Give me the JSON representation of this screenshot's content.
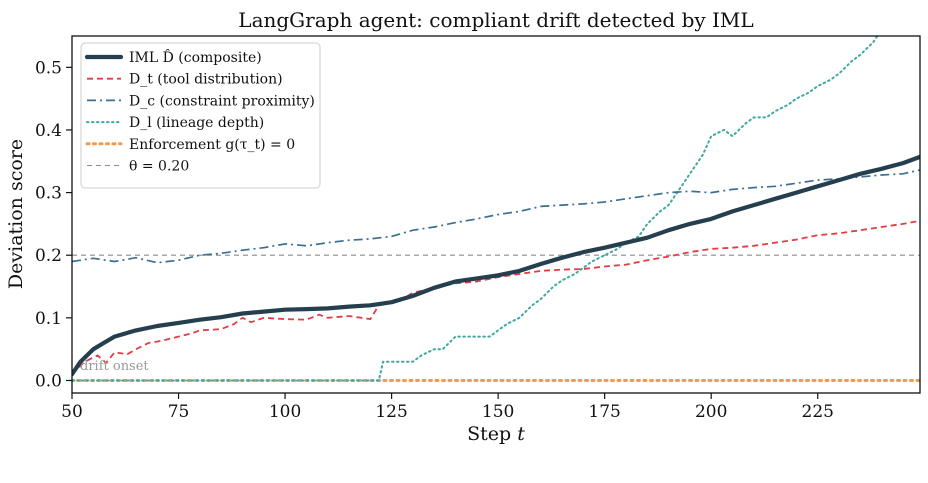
{
  "chart_data": {
    "type": "line",
    "title": "LangGraph agent: compliant drift detected by IML",
    "xlabel": "Step t",
    "ylabel": "Deviation score",
    "xlim": [
      50,
      249
    ],
    "ylim": [
      -0.02,
      0.55
    ],
    "xticks": [
      50,
      75,
      100,
      125,
      150,
      175,
      200,
      225
    ],
    "yticks": [
      0.0,
      0.1,
      0.2,
      0.3,
      0.4,
      0.5
    ],
    "xtick_labels": [
      "50",
      "75",
      "100",
      "125",
      "150",
      "175",
      "200",
      "225"
    ],
    "ytick_labels": [
      "0.0",
      "0.1",
      "0.2",
      "0.3",
      "0.4",
      "0.5"
    ],
    "grid": false,
    "legend_position": "top-left",
    "annotation": "drift onset",
    "series": [
      {
        "name": "IML D̂ (composite)",
        "color": "#263f4f",
        "style": "solid",
        "x": [
          50,
          52,
          55,
          58,
          60,
          65,
          70,
          75,
          80,
          85,
          90,
          95,
          100,
          105,
          110,
          115,
          120,
          125,
          130,
          135,
          140,
          145,
          150,
          155,
          160,
          165,
          170,
          175,
          180,
          185,
          190,
          195,
          200,
          205,
          210,
          215,
          220,
          225,
          230,
          235,
          240,
          245,
          249
        ],
        "values": [
          0.01,
          0.03,
          0.05,
          0.062,
          0.07,
          0.08,
          0.087,
          0.092,
          0.097,
          0.101,
          0.107,
          0.11,
          0.113,
          0.114,
          0.115,
          0.118,
          0.12,
          0.125,
          0.135,
          0.148,
          0.158,
          0.163,
          0.168,
          0.175,
          0.186,
          0.196,
          0.205,
          0.212,
          0.22,
          0.228,
          0.24,
          0.25,
          0.258,
          0.27,
          0.28,
          0.29,
          0.3,
          0.31,
          0.32,
          0.33,
          0.338,
          0.347,
          0.357
        ]
      },
      {
        "name": "D_t (tool distribution)",
        "color": "#e23c45",
        "style": "dashed",
        "x": [
          50,
          53,
          56,
          58,
          60,
          63,
          65,
          68,
          70,
          72,
          75,
          78,
          80,
          85,
          88,
          90,
          92,
          95,
          100,
          105,
          108,
          110,
          115,
          120,
          122,
          125,
          128,
          130,
          135,
          140,
          145,
          150,
          155,
          160,
          165,
          170,
          175,
          180,
          185,
          190,
          195,
          200,
          205,
          210,
          215,
          220,
          225,
          230,
          235,
          240,
          245,
          249
        ],
        "values": [
          0.01,
          0.03,
          0.04,
          0.028,
          0.045,
          0.042,
          0.05,
          0.06,
          0.062,
          0.065,
          0.07,
          0.075,
          0.08,
          0.082,
          0.09,
          0.1,
          0.093,
          0.1,
          0.098,
          0.097,
          0.105,
          0.1,
          0.103,
          0.098,
          0.12,
          0.125,
          0.132,
          0.14,
          0.148,
          0.155,
          0.158,
          0.165,
          0.17,
          0.175,
          0.177,
          0.178,
          0.182,
          0.185,
          0.192,
          0.198,
          0.205,
          0.21,
          0.212,
          0.215,
          0.22,
          0.225,
          0.232,
          0.235,
          0.24,
          0.245,
          0.25,
          0.255
        ]
      },
      {
        "name": "D_c (constraint proximity)",
        "color": "#3d6f91",
        "style": "dashdot",
        "x": [
          50,
          55,
          60,
          65,
          70,
          75,
          80,
          85,
          90,
          95,
          100,
          105,
          110,
          115,
          120,
          125,
          130,
          135,
          140,
          145,
          150,
          155,
          160,
          165,
          170,
          175,
          180,
          185,
          190,
          195,
          200,
          205,
          210,
          215,
          220,
          225,
          230,
          235,
          240,
          245,
          249
        ],
        "values": [
          0.19,
          0.195,
          0.19,
          0.196,
          0.188,
          0.192,
          0.2,
          0.203,
          0.208,
          0.212,
          0.218,
          0.215,
          0.22,
          0.224,
          0.226,
          0.23,
          0.24,
          0.245,
          0.252,
          0.258,
          0.265,
          0.27,
          0.278,
          0.28,
          0.282,
          0.285,
          0.29,
          0.295,
          0.3,
          0.302,
          0.3,
          0.305,
          0.308,
          0.31,
          0.315,
          0.32,
          0.322,
          0.325,
          0.328,
          0.33,
          0.336
        ]
      },
      {
        "name": "D_l (lineage depth)",
        "color": "#3fa8a0",
        "style": "dotted",
        "x": [
          50,
          60,
          80,
          100,
          120,
          122,
          123,
          125,
          130,
          132,
          135,
          137,
          140,
          145,
          148,
          150,
          152,
          155,
          158,
          160,
          163,
          165,
          168,
          170,
          172,
          175,
          178,
          180,
          183,
          185,
          188,
          190,
          193,
          195,
          198,
          200,
          203,
          205,
          208,
          210,
          213,
          215,
          218,
          220,
          223,
          225,
          228,
          230,
          233,
          235,
          238,
          240,
          243,
          245,
          249
        ],
        "values": [
          0.0,
          0.0,
          0.0,
          0.0,
          0.0,
          0.0,
          0.03,
          0.03,
          0.03,
          0.04,
          0.05,
          0.05,
          0.07,
          0.07,
          0.07,
          0.08,
          0.09,
          0.1,
          0.12,
          0.13,
          0.15,
          0.16,
          0.17,
          0.18,
          0.19,
          0.2,
          0.21,
          0.22,
          0.23,
          0.25,
          0.27,
          0.28,
          0.31,
          0.33,
          0.36,
          0.39,
          0.4,
          0.39,
          0.41,
          0.42,
          0.42,
          0.43,
          0.44,
          0.45,
          0.46,
          0.47,
          0.48,
          0.49,
          0.51,
          0.52,
          0.54,
          0.56,
          0.58,
          0.6,
          0.62
        ]
      },
      {
        "name": "Enforcement g(τ_t) = 0",
        "color": "#f59a4a",
        "style": "dotted-thick",
        "x": [
          50,
          249
        ],
        "values": [
          0.0,
          0.0
        ]
      },
      {
        "name": "θ = 0.20",
        "color": "#8a8a8a",
        "style": "dashed-thin",
        "x": [
          50,
          249
        ],
        "values": [
          0.2,
          0.2
        ]
      }
    ]
  }
}
